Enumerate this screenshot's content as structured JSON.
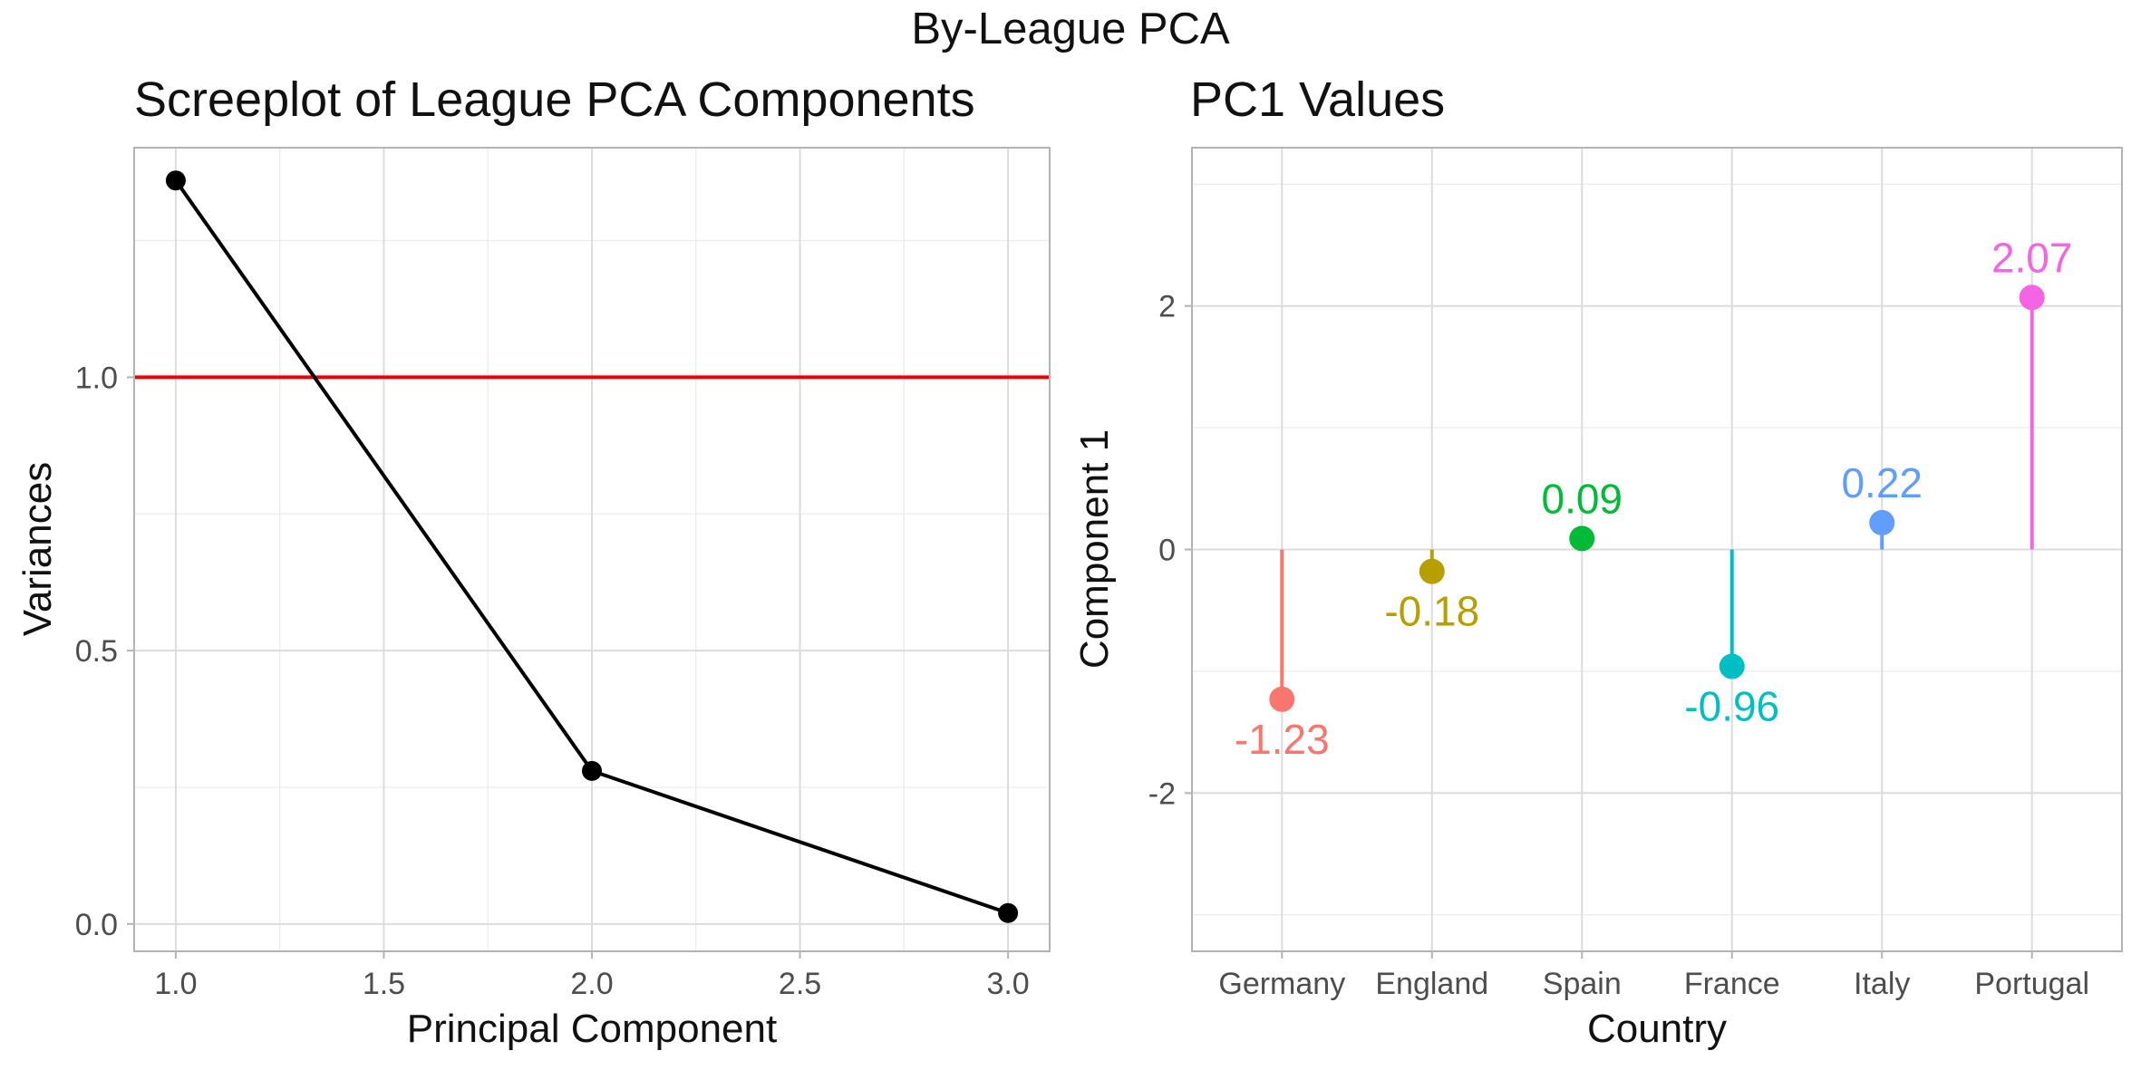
{
  "figure": {
    "title": "By-League PCA"
  },
  "chart_data": [
    {
      "type": "line",
      "title": "Screeplot of League PCA Components",
      "xlabel": "Principal Component",
      "ylabel": "Variances",
      "x": [
        1.0,
        2.0,
        3.0
      ],
      "y": [
        1.36,
        0.28,
        0.02
      ],
      "xlim": [
        0.9,
        3.1
      ],
      "ylim": [
        -0.05,
        1.42
      ],
      "xticks": [
        1.0,
        1.5,
        2.0,
        2.5,
        3.0
      ],
      "xtick_labels": [
        "1.0",
        "1.5",
        "2.0",
        "2.5",
        "3.0"
      ],
      "yticks": [
        0.0,
        0.5,
        1.0
      ],
      "ytick_labels": [
        "0.0",
        "0.5",
        "1.0"
      ],
      "reference_line": {
        "y": 1.0,
        "color": "#ee0000"
      },
      "line_color": "#000000",
      "grid": true
    },
    {
      "type": "scatter",
      "subtype": "lollipop",
      "title": "PC1 Values",
      "xlabel": "Country",
      "ylabel": "Component 1",
      "categories": [
        "Germany",
        "England",
        "Spain",
        "France",
        "Italy",
        "Portugal"
      ],
      "values": [
        -1.23,
        -0.18,
        0.09,
        -0.96,
        0.22,
        2.07
      ],
      "labels": [
        "-1.23",
        "-0.18",
        "0.09",
        "-0.96",
        "0.22",
        "2.07"
      ],
      "colors": [
        "#F8766D",
        "#B79F00",
        "#00BA38",
        "#00BFC4",
        "#619CFF",
        "#F564E3"
      ],
      "ylim": [
        -3.3,
        3.3
      ],
      "yticks": [
        -2,
        0,
        2
      ],
      "ytick_labels": [
        "-2",
        "0",
        "2"
      ],
      "grid": true
    }
  ]
}
